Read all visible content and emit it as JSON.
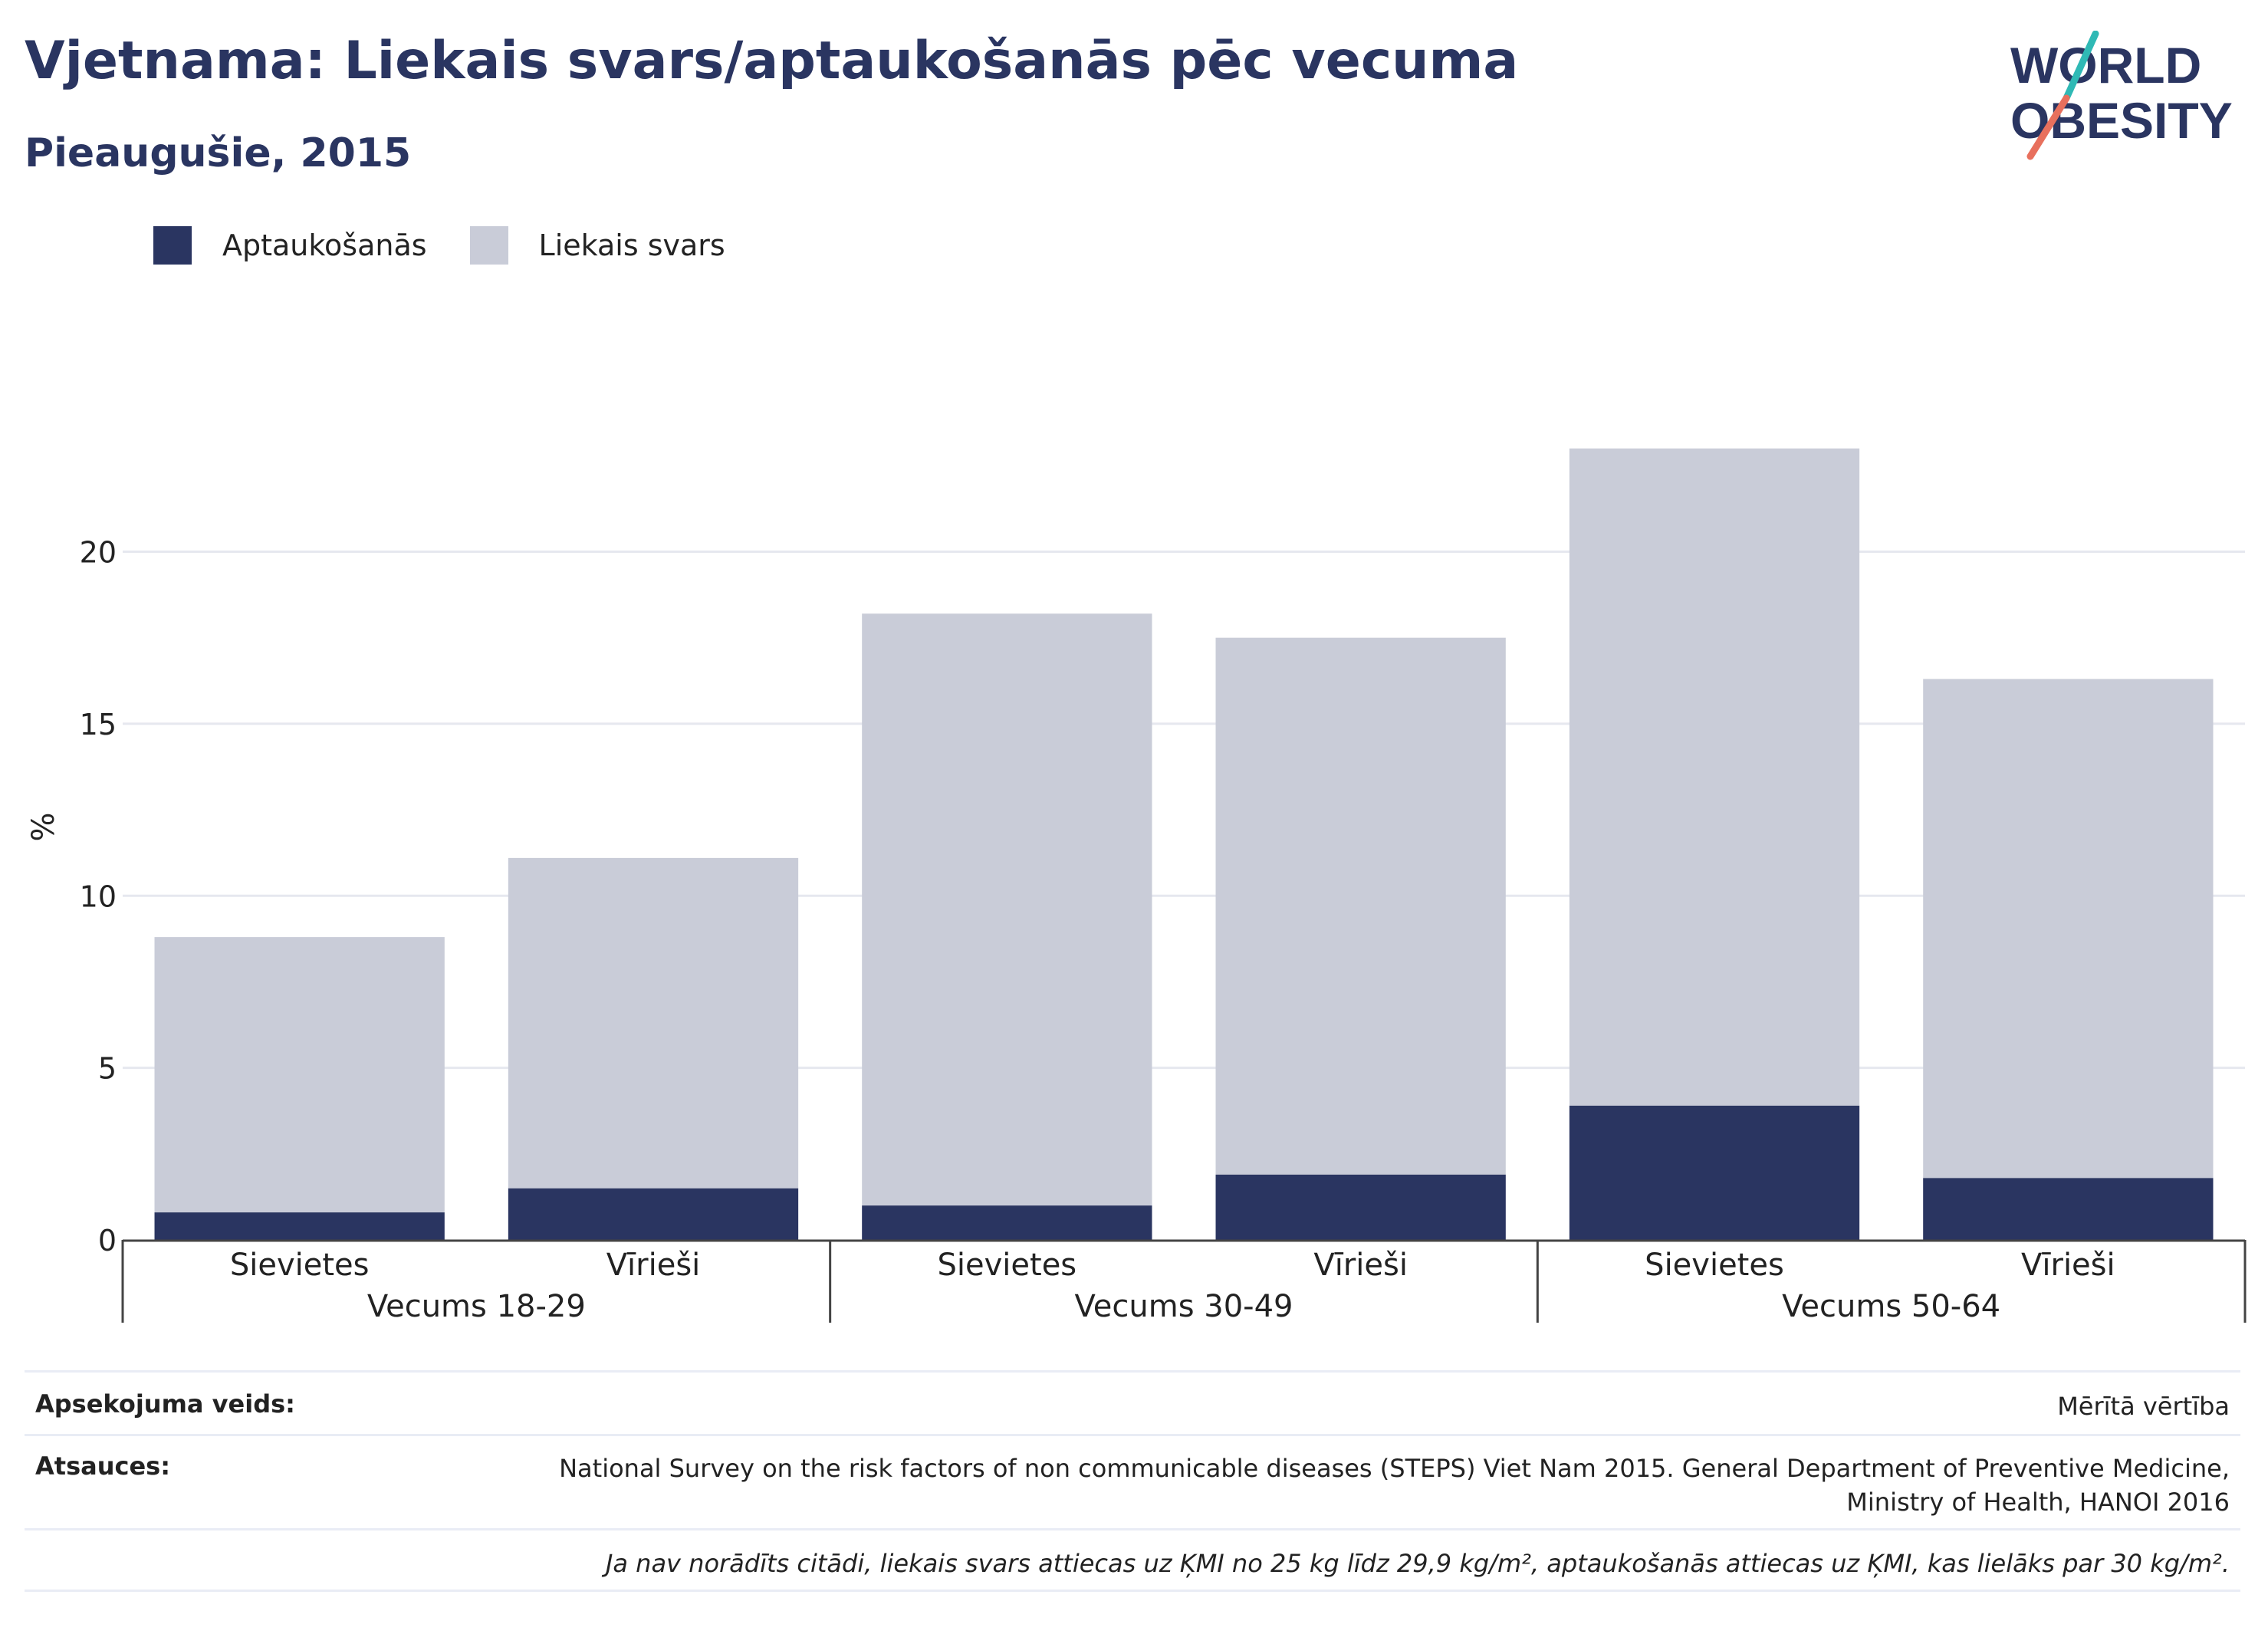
{
  "title": "Vjetnama: Liekais svars/aptaukošanās pēc vecuma",
  "subtitle": "Pieaugušie, 2015",
  "logo": {
    "line1": "WORLD",
    "line2": "OBESITY"
  },
  "colors": {
    "obesity": "#2a3561",
    "overweight": "#c9ccd8",
    "accent_teal": "#2fb9b5",
    "accent_red": "#e8705d"
  },
  "legend": [
    {
      "label": "Aptaukošanās",
      "color": "#2a3561"
    },
    {
      "label": "Liekais svars",
      "color": "#c9ccd8"
    }
  ],
  "chart_data": {
    "type": "bar",
    "stacked": true,
    "ylabel": "%",
    "ylim": [
      0,
      24
    ],
    "yticks": [
      0,
      5,
      10,
      15,
      20
    ],
    "grid": true,
    "legend_position": "top-left",
    "categories": [
      "Sievietes",
      "Vīrieši",
      "Sievietes",
      "Vīrieši",
      "Sievietes",
      "Vīrieši"
    ],
    "groups": [
      {
        "label": "Vecums 18-29",
        "span": 2
      },
      {
        "label": "Vecums 30-49",
        "span": 2
      },
      {
        "label": "Vecums 50-64",
        "span": 2
      }
    ],
    "series": [
      {
        "name": "Aptaukošanās",
        "values": [
          0.8,
          1.5,
          1.0,
          1.9,
          3.9,
          1.8
        ]
      },
      {
        "name": "Liekais svars",
        "values": [
          8.0,
          9.6,
          17.2,
          15.6,
          19.1,
          14.5
        ]
      }
    ]
  },
  "meta": {
    "survey_label": "Apsekojuma veids:",
    "survey_value": "Mērītā vērtība",
    "refs_label": "Atsauces:",
    "refs_line1": "National Survey on the risk factors of non communicable diseases (STEPS) Viet Nam 2015. General Department of Preventive Medicine,",
    "refs_line2": "Ministry of Health, HANOI 2016",
    "note": "Ja nav norādīts citādi, liekais svars attiecas uz ĶMI no 25 kg līdz 29,9 kg/m², aptaukošanās attiecas uz ĶMI, kas lielāks par 30 kg/m²."
  }
}
